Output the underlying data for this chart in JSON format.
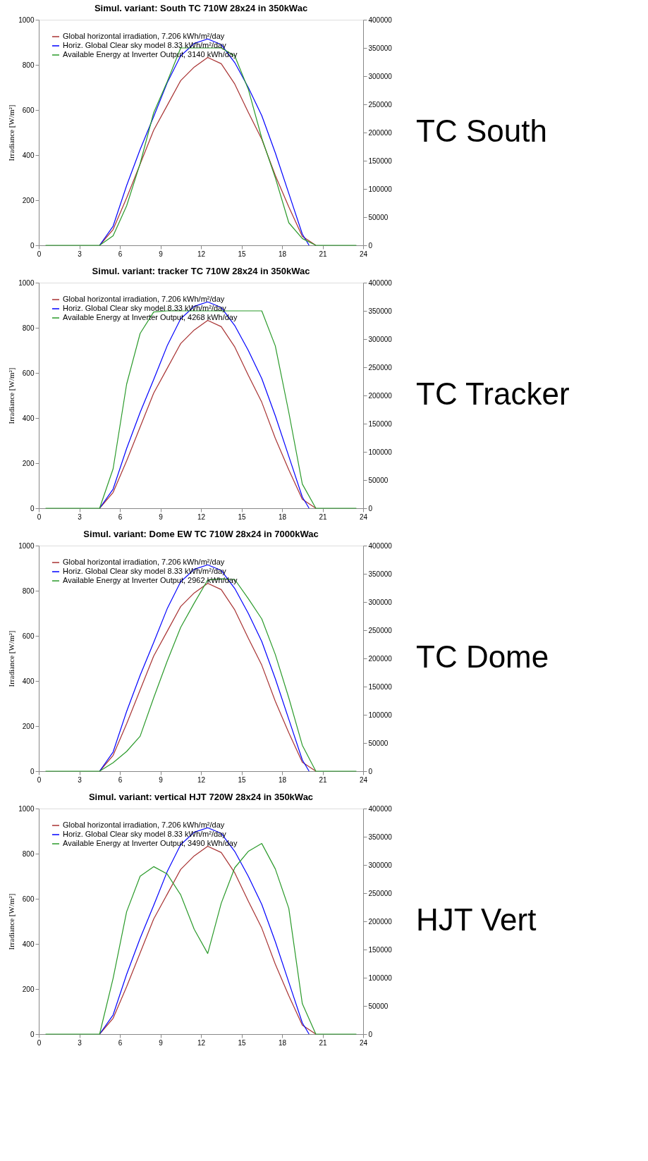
{
  "chart_data": [
    {
      "type": "line",
      "title": "Simul. variant: South TC 710W 28x24 in 350kWac",
      "ylabel": "Irradiance  [W/m²]",
      "xlim": [
        0,
        24
      ],
      "xticks": [
        0,
        3,
        6,
        9,
        12,
        15,
        18,
        21,
        24
      ],
      "ylim": [
        0,
        1000
      ],
      "yticks": [
        0,
        200,
        400,
        600,
        800,
        1000
      ],
      "y2lim": [
        0,
        400000
      ],
      "y2ticks": [
        0,
        50000,
        100000,
        150000,
        200000,
        250000,
        300000,
        350000,
        400000
      ],
      "legend": "top left",
      "grid": false,
      "annotations": [
        "TC South"
      ],
      "x": [
        0.5,
        1.5,
        2.5,
        3.5,
        4.5,
        5.5,
        6.5,
        7.5,
        8.5,
        9.5,
        10.5,
        11.5,
        12.5,
        13.5,
        14.5,
        15.5,
        16.5,
        17.5,
        18.5,
        19.5,
        20.5,
        21.5,
        22.5,
        23.5
      ],
      "series": [
        {
          "name": "Global horizontal irradiation,  7.206 kWh/m²/day",
          "color": "#a83232",
          "values": [
            null,
            null,
            null,
            null,
            0,
            70,
            210,
            360,
            510,
            620,
            730,
            790,
            833,
            805,
            715,
            590,
            470,
            310,
            170,
            40,
            0,
            null,
            null,
            null
          ]
        },
        {
          "name": "Horiz. Global Clear sky model  8.33 kWh/m²/day",
          "color": "#0000ff",
          "x": [
            4.5,
            5.5,
            6.5,
            7.5,
            8.5,
            9.5,
            10.5,
            11.5,
            12.5,
            13.5,
            14.5,
            15.5,
            16.5,
            17.5,
            18.5,
            19.5,
            20.0
          ],
          "values": [
            0,
            85,
            265,
            425,
            570,
            720,
            840,
            895,
            915,
            890,
            810,
            700,
            575,
            410,
            230,
            50,
            0
          ]
        },
        {
          "name": "Available Energy at Inverter Output,  3140 kWh/day",
          "color": "#2a9a2a",
          "axis": "y2",
          "values": [
            0,
            0,
            0,
            0,
            0,
            17000,
            70000,
            145000,
            235000,
            290000,
            350000,
            350000,
            350000,
            350000,
            336000,
            277000,
            190000,
            120000,
            40000,
            12000,
            0,
            0,
            0,
            0
          ]
        }
      ]
    },
    {
      "type": "line",
      "title": "Simul. variant: tracker TC 710W 28x24 in 350kWac",
      "ylabel": "Irradiance  [W/m²]",
      "xlim": [
        0,
        24
      ],
      "xticks": [
        0,
        3,
        6,
        9,
        12,
        15,
        18,
        21,
        24
      ],
      "ylim": [
        0,
        1000
      ],
      "yticks": [
        0,
        200,
        400,
        600,
        800,
        1000
      ],
      "y2lim": [
        0,
        400000
      ],
      "y2ticks": [
        0,
        50000,
        100000,
        150000,
        200000,
        250000,
        300000,
        350000,
        400000
      ],
      "legend": "top left",
      "grid": false,
      "annotations": [
        "TC Tracker"
      ],
      "x": [
        0.5,
        1.5,
        2.5,
        3.5,
        4.5,
        5.5,
        6.5,
        7.5,
        8.5,
        9.5,
        10.5,
        11.5,
        12.5,
        13.5,
        14.5,
        15.5,
        16.5,
        17.5,
        18.5,
        19.5,
        20.5,
        21.5,
        22.5,
        23.5
      ],
      "series": [
        {
          "name": "Global horizontal irradiation,  7.206 kWh/m²/day",
          "color": "#a83232",
          "values": [
            null,
            null,
            null,
            null,
            0,
            70,
            210,
            360,
            510,
            620,
            730,
            790,
            833,
            805,
            715,
            590,
            470,
            310,
            170,
            40,
            0,
            null,
            null,
            null
          ]
        },
        {
          "name": "Horiz. Global Clear sky model  8.33 kWh/m²/day",
          "color": "#0000ff",
          "x": [
            4.5,
            5.5,
            6.5,
            7.5,
            8.5,
            9.5,
            10.5,
            11.5,
            12.5,
            13.5,
            14.5,
            15.5,
            16.5,
            17.5,
            18.5,
            19.5,
            20.0
          ],
          "values": [
            0,
            85,
            265,
            425,
            570,
            720,
            840,
            895,
            915,
            890,
            810,
            700,
            575,
            410,
            230,
            50,
            0
          ]
        },
        {
          "name": "Available Energy at Inverter Output,  4268 kWh/day",
          "color": "#2a9a2a",
          "axis": "y2",
          "values": [
            0,
            0,
            0,
            0,
            0,
            70000,
            220000,
            310000,
            348000,
            350000,
            350000,
            350000,
            350000,
            350000,
            350000,
            350000,
            350000,
            288000,
            170000,
            43000,
            0,
            0,
            0,
            0
          ]
        }
      ]
    },
    {
      "type": "line",
      "title": "Simul. variant: Dome EW TC 710W 28x24 in 7000kWac",
      "ylabel": "Irradiance  [W/m²]",
      "xlim": [
        0,
        24
      ],
      "xticks": [
        0,
        3,
        6,
        9,
        12,
        15,
        18,
        21,
        24
      ],
      "ylim": [
        0,
        1000
      ],
      "yticks": [
        0,
        200,
        400,
        600,
        800,
        1000
      ],
      "y2lim": [
        0,
        400000
      ],
      "y2ticks": [
        0,
        50000,
        100000,
        150000,
        200000,
        250000,
        300000,
        350000,
        400000
      ],
      "legend": "top left",
      "grid": false,
      "annotations": [
        "TC Dome"
      ],
      "x": [
        0.5,
        1.5,
        2.5,
        3.5,
        4.5,
        5.5,
        6.5,
        7.5,
        8.5,
        9.5,
        10.5,
        11.5,
        12.5,
        13.5,
        14.5,
        15.5,
        16.5,
        17.5,
        18.5,
        19.5,
        20.5,
        21.5,
        22.5,
        23.5
      ],
      "series": [
        {
          "name": "Global horizontal irradiation,  7.206 kWh/m²/day",
          "color": "#a83232",
          "values": [
            null,
            null,
            null,
            null,
            0,
            70,
            210,
            360,
            510,
            620,
            730,
            790,
            833,
            805,
            715,
            590,
            470,
            310,
            170,
            40,
            0,
            null,
            null,
            null
          ]
        },
        {
          "name": "Horiz. Global Clear sky model  8.33 kWh/m²/day",
          "color": "#0000ff",
          "x": [
            4.5,
            5.5,
            6.5,
            7.5,
            8.5,
            9.5,
            10.5,
            11.5,
            12.5,
            13.5,
            14.5,
            15.5,
            16.5,
            17.5,
            18.5,
            19.5,
            20.0
          ],
          "values": [
            0,
            85,
            265,
            425,
            570,
            720,
            840,
            895,
            915,
            890,
            810,
            700,
            575,
            410,
            230,
            50,
            0
          ]
        },
        {
          "name": "Available Energy at Inverter Output,  2962 kWh/day",
          "color": "#2a9a2a",
          "axis": "y2",
          "values": [
            0,
            0,
            0,
            0,
            0,
            15000,
            35000,
            62000,
            130000,
            195000,
            255000,
            298000,
            339000,
            341000,
            340000,
            306000,
            270000,
            207000,
            130000,
            46000,
            0,
            0,
            0,
            0
          ]
        }
      ]
    },
    {
      "type": "line",
      "title": "Simul. variant: vertical HJT 720W 28x24 in 350kWac",
      "ylabel": "Irradiance  [W/m²]",
      "xlim": [
        0,
        24
      ],
      "xticks": [
        0,
        3,
        6,
        9,
        12,
        15,
        18,
        21,
        24
      ],
      "ylim": [
        0,
        1000
      ],
      "yticks": [
        0,
        200,
        400,
        600,
        800,
        1000
      ],
      "y2lim": [
        0,
        400000
      ],
      "y2ticks": [
        0,
        50000,
        100000,
        150000,
        200000,
        250000,
        300000,
        350000,
        400000
      ],
      "legend": "top left",
      "grid": false,
      "annotations": [
        "HJT Vert"
      ],
      "x": [
        0.5,
        1.5,
        2.5,
        3.5,
        4.5,
        5.5,
        6.5,
        7.5,
        8.5,
        9.5,
        10.5,
        11.5,
        12.5,
        13.5,
        14.5,
        15.5,
        16.5,
        17.5,
        18.5,
        19.5,
        20.5,
        21.5,
        22.5,
        23.5
      ],
      "series": [
        {
          "name": "Global horizontal irradiation,  7.206 kWh/m²/day",
          "color": "#a83232",
          "values": [
            null,
            null,
            null,
            null,
            0,
            70,
            210,
            360,
            510,
            620,
            730,
            790,
            833,
            805,
            715,
            590,
            470,
            310,
            170,
            40,
            0,
            null,
            null,
            null
          ]
        },
        {
          "name": "Horiz. Global Clear sky model  8.33 kWh/m²/day",
          "color": "#0000ff",
          "x": [
            4.5,
            5.5,
            6.5,
            7.5,
            8.5,
            9.5,
            10.5,
            11.5,
            12.5,
            13.5,
            14.5,
            15.5,
            16.5,
            17.5,
            18.5,
            19.5,
            20.0
          ],
          "values": [
            0,
            85,
            265,
            425,
            570,
            720,
            840,
            895,
            915,
            890,
            810,
            700,
            575,
            410,
            230,
            50,
            0
          ]
        },
        {
          "name": "Available Energy at Inverter Output,  3490 kWh/day",
          "color": "#2a9a2a",
          "axis": "y2",
          "values": [
            0,
            0,
            0,
            0,
            0,
            99000,
            217000,
            280000,
            297000,
            284000,
            247000,
            186000,
            143000,
            232000,
            295000,
            324000,
            338000,
            293000,
            223000,
            54000,
            0,
            0,
            0,
            0
          ]
        }
      ]
    }
  ]
}
